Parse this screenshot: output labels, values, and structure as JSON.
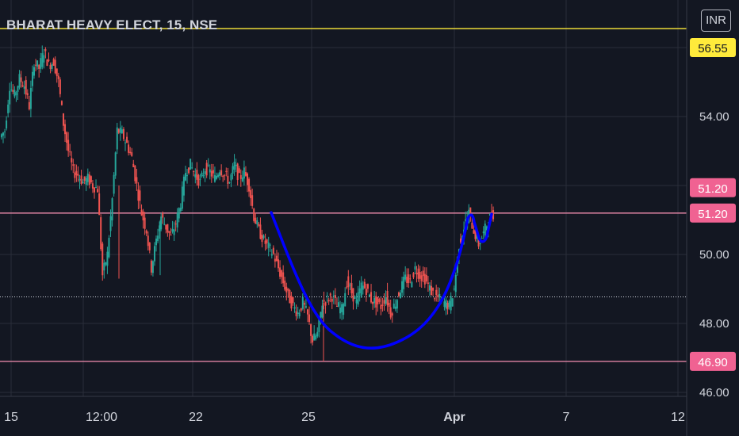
{
  "header": {
    "title": "BHARAT HEAVY ELECT, 15, NSE",
    "currency_button": "INR"
  },
  "colors": {
    "background": "#131722",
    "grid": "#2a2e39",
    "axis_text": "#d1d4dc",
    "up_candle": "#26a69a",
    "down_candle": "#ef5350",
    "resistance_line": "#ffeb3b",
    "support_line": "#f48fb1",
    "cup_curve": "#0000ff",
    "price_badge_pink": "#f06292",
    "price_badge_yellow": "#ffeb3b"
  },
  "chart_data": {
    "type": "candlestick",
    "symbol": "BHARAT HEAVY ELECT",
    "interval": "15",
    "exchange": "NSE",
    "currency": "INR",
    "x_ticks": [
      "15",
      "12:00",
      "22",
      "25",
      "Apr",
      "7",
      "12"
    ],
    "y_ticks": [
      "54.00",
      "52.00",
      "50.00",
      "48.00",
      "46.00"
    ],
    "ylim": [
      46.0,
      56.4
    ],
    "horizontal_lines": [
      {
        "label": "56.55",
        "value": 56.55,
        "color": "#ffeb3b"
      },
      {
        "label": "51.20",
        "value": 51.2,
        "color": "#f48fb1"
      },
      {
        "label": "46.90",
        "value": 46.9,
        "color": "#f48fb1"
      }
    ],
    "last_price_line": 48.77,
    "price_labels": [
      "51.20",
      "51.20",
      "46.90",
      "56.55"
    ],
    "close_series": [
      53.6,
      54.9,
      54.6,
      55.1,
      54.9,
      54.3,
      55.6,
      55.4,
      55.9,
      55.5,
      55.6,
      55.0,
      53.8,
      53.0,
      52.4,
      52.3,
      52.1,
      52.2,
      52.0,
      51.9,
      49.4,
      50.0,
      51.6,
      53.6,
      53.5,
      53.2,
      52.8,
      52.0,
      51.2,
      50.7,
      49.6,
      50.4,
      51.1,
      50.8,
      50.5,
      50.9,
      51.5,
      52.4,
      52.6,
      52.3,
      52.1,
      52.5,
      52.4,
      52.2,
      52.5,
      52.3,
      52.1,
      52.6,
      52.2,
      52.4,
      52.0,
      51.1,
      50.7,
      50.4,
      50.2,
      50.0,
      49.6,
      49.2,
      48.8,
      48.5,
      48.3,
      48.6,
      48.2,
      47.5,
      47.7,
      48.6,
      48.7,
      48.8,
      48.5,
      48.4,
      49.2,
      48.9,
      48.6,
      49.1,
      49.0,
      48.7,
      48.6,
      48.5,
      48.8,
      48.3,
      48.6,
      49.0,
      49.3,
      49.2,
      49.6,
      49.4,
      49.3,
      49.0,
      48.8,
      48.7,
      48.6,
      48.5,
      49.0,
      50.3,
      50.8,
      51.2,
      50.7,
      50.3,
      50.6,
      51.0,
      51.2
    ],
    "annotations": [
      {
        "type": "cup_pattern_curve",
        "color": "#0000ff"
      }
    ]
  }
}
